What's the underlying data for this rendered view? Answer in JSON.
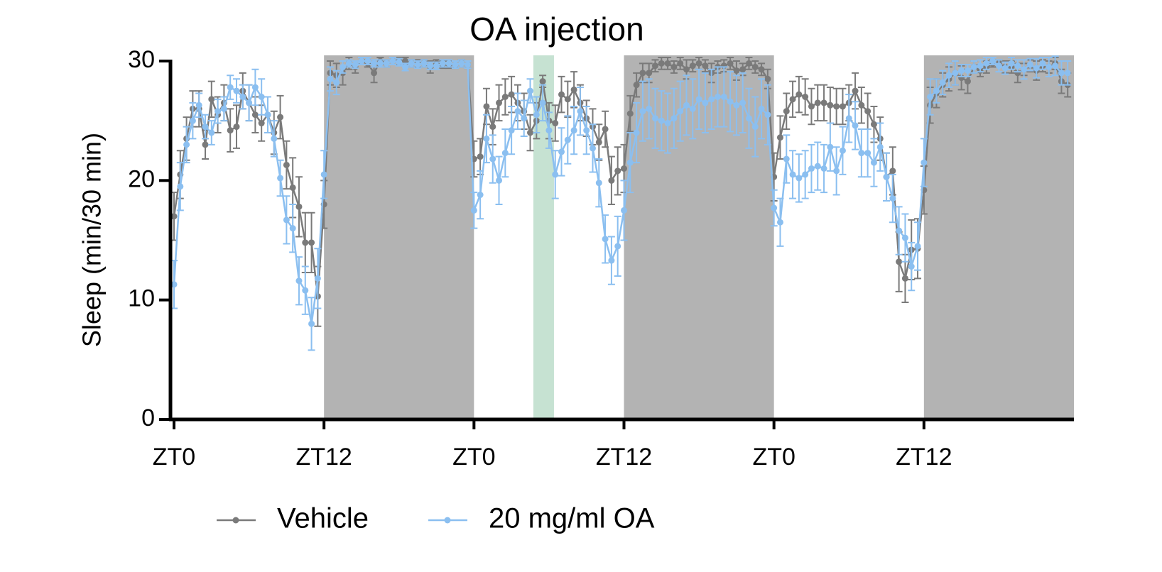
{
  "chart_data": {
    "type": "line",
    "title": "OA injection",
    "y_label": "Sleep (min/30 min)",
    "x": [
      0,
      0.5,
      1,
      1.5,
      2,
      2.5,
      3,
      3.5,
      4,
      4.5,
      5,
      5.5,
      6,
      6.5,
      7,
      7.5,
      8,
      8.5,
      9,
      9.5,
      10,
      10.5,
      11,
      11.5,
      12,
      12.5,
      13,
      13.5,
      14,
      14.5,
      15,
      15.5,
      16,
      16.5,
      17,
      17.5,
      18,
      18.5,
      19,
      19.5,
      20,
      20.5,
      21,
      21.5,
      22,
      22.5,
      23,
      23.5,
      24,
      24.5,
      25,
      25.5,
      26,
      26.5,
      27,
      27.5,
      28,
      28.5,
      29,
      29.5,
      30,
      30.5,
      31,
      31.5,
      32,
      32.5,
      33,
      33.5,
      34,
      34.5,
      35,
      35.5,
      36,
      36.5,
      37,
      37.5,
      38,
      38.5,
      39,
      39.5,
      40,
      40.5,
      41,
      41.5,
      42,
      42.5,
      43,
      43.5,
      44,
      44.5,
      45,
      45.5,
      46,
      46.5,
      47,
      47.5,
      48,
      48.5,
      49,
      49.5,
      50,
      50.5,
      51,
      51.5,
      52,
      52.5,
      53,
      53.5,
      54,
      54.5,
      55,
      55.5,
      56,
      56.5,
      57,
      57.5,
      58,
      58.5,
      59,
      59.5,
      60,
      60.5,
      61,
      61.5,
      62,
      62.5,
      63,
      63.5,
      64,
      64.5,
      65,
      65.5,
      66,
      66.5,
      67,
      67.5,
      68,
      68.5,
      69,
      69.5,
      70,
      70.5,
      71,
      71.5
    ],
    "series": [
      {
        "name": "Vehicle",
        "color": "#7a7a7a",
        "values": [
          17,
          20.5,
          23.5,
          26,
          26,
          23,
          26.8,
          25.5,
          26.5,
          24.2,
          24.5,
          27.5,
          26.5,
          25.5,
          24.8,
          25.5,
          24,
          25.3,
          21.3,
          19.4,
          17.8,
          14.8,
          14.8,
          10.3,
          18,
          29,
          28.8,
          29,
          29.8,
          29.5,
          30,
          29.8,
          29,
          30,
          29.8,
          30,
          30,
          30,
          29.8,
          29.8,
          29.8,
          29.5,
          29.8,
          29.7,
          29.7,
          29.7,
          29.8,
          29.7,
          21.8,
          22,
          26.2,
          24.5,
          26.5,
          27,
          27.2,
          26.5,
          25.8,
          24,
          25,
          28.3,
          25,
          24.8,
          27.2,
          26.8,
          27.6,
          26.5,
          25.2,
          24.5,
          23.2,
          24.3,
          20,
          20.8,
          21,
          25.6,
          28,
          29,
          29,
          29.6,
          29.8,
          29.8,
          29.5,
          29.8,
          29.3,
          29.6,
          29.8,
          29.6,
          29,
          29.5,
          29.6,
          29.8,
          29.2,
          29.3,
          29.8,
          29.5,
          29.3,
          28.5,
          20.3,
          23.6,
          25.8,
          26.8,
          27.2,
          27,
          26.2,
          26.5,
          26.5,
          26.3,
          26.2,
          26.2,
          26.5,
          27.5,
          26.3,
          25.8,
          24.7,
          23.5,
          20.3,
          20.8,
          13.2,
          11.8,
          14.2,
          14.3,
          19.2,
          26.3,
          27.3,
          28,
          28.5,
          29,
          28.6,
          28.3,
          29.5,
          29.2,
          29.5,
          29.8,
          29.8,
          29.5,
          29.5,
          29,
          29.3,
          29.6,
          29.2,
          29.6,
          29.5,
          29.8,
          28.3,
          28
        ],
        "errors": [
          2,
          2,
          1.8,
          1.5,
          1.5,
          1.2,
          1.5,
          1.5,
          1.5,
          1.8,
          1.8,
          1.5,
          1.5,
          1.5,
          1.5,
          1.5,
          1.8,
          1.8,
          2,
          2.5,
          2.5,
          2.5,
          2.5,
          2.5,
          2,
          1,
          1,
          1,
          0.5,
          0.5,
          0.3,
          0.3,
          0.8,
          0.3,
          0.3,
          0.3,
          0.3,
          0.3,
          0.3,
          0.3,
          0.3,
          0.5,
          0.3,
          0.3,
          0.3,
          0.3,
          0.3,
          0.3,
          1.5,
          1.5,
          1.5,
          1.5,
          1.5,
          1.5,
          1.5,
          1.5,
          1.5,
          1.5,
          1.5,
          0.5,
          1.5,
          1.5,
          1.5,
          1.5,
          1.5,
          1.5,
          1.5,
          1.5,
          1.5,
          1.5,
          2,
          2,
          2,
          1.5,
          1,
          0.8,
          0.8,
          0.5,
          0.5,
          0.5,
          0.5,
          0.5,
          0.8,
          0.5,
          0.5,
          0.5,
          0.8,
          0.5,
          0.5,
          0.5,
          0.8,
          0.5,
          0.5,
          0.5,
          0.5,
          0.8,
          2,
          1.8,
          1.5,
          1.5,
          1.5,
          1.5,
          1.5,
          1.5,
          1.5,
          1.5,
          1.5,
          1.5,
          1.5,
          1.5,
          1.5,
          1.5,
          1.5,
          1.8,
          2,
          2,
          2.5,
          2,
          2.5,
          2.5,
          2,
          1.5,
          1.2,
          1,
          1,
          1,
          1,
          1,
          0.5,
          0.5,
          0.5,
          0.3,
          0.3,
          0.5,
          0.5,
          0.8,
          0.5,
          0.5,
          0.8,
          0.5,
          0.5,
          0.5,
          1,
          1
        ]
      },
      {
        "name": "20 mg/ml OA",
        "color": "#8bbff0",
        "values": [
          11.3,
          19.5,
          23,
          25,
          26.3,
          24.5,
          24,
          25.8,
          26,
          27.8,
          27.5,
          27,
          26.5,
          27.8,
          27,
          25.5,
          23.5,
          20.2,
          16.7,
          16,
          11.6,
          10.8,
          8,
          11.8,
          20.5,
          28.5,
          28.2,
          29.5,
          29.8,
          29.7,
          30,
          30,
          29.8,
          29.8,
          29.8,
          30,
          29.9,
          29.5,
          29.8,
          29.7,
          29.8,
          29.6,
          29.6,
          29.8,
          29.8,
          29.7,
          29.8,
          29.7,
          17.5,
          18.8,
          23.5,
          21.8,
          20,
          22.3,
          24.2,
          25.8,
          25.2,
          27.5,
          25.5,
          26.5,
          24.2,
          20.5,
          22.4,
          23.4,
          24.2,
          25.8,
          24.2,
          22.7,
          19.8,
          15.1,
          13.3,
          14.5,
          17.5,
          21.5,
          24,
          25.8,
          26,
          25.2,
          25,
          24.8,
          25.2,
          25.8,
          26.3,
          26,
          26.8,
          26.5,
          26.8,
          27,
          27,
          26.6,
          26.3,
          26.5,
          25.2,
          24.5,
          26,
          25.5,
          17.7,
          16.5,
          21.8,
          20.5,
          20.2,
          20.5,
          21,
          21.2,
          21,
          22.8,
          20.8,
          22.5,
          25.2,
          24.6,
          22.3,
          22.3,
          21.5,
          22.8,
          20.3,
          18.5,
          15.8,
          15.2,
          12.8,
          14.5,
          21.5,
          27,
          27.5,
          28.2,
          28.8,
          29,
          29.2,
          29.2,
          29.5,
          29.6,
          29.8,
          30,
          29.6,
          29.4,
          29.8,
          29.6,
          29.3,
          29.7,
          29.4,
          29.8,
          29.5,
          29.6,
          29,
          29
        ],
        "errors": [
          2,
          2,
          1.5,
          1.5,
          1,
          1,
          1,
          1,
          1,
          1,
          1,
          1,
          1.5,
          1.5,
          1.5,
          1.5,
          1.5,
          1.5,
          2,
          2,
          2,
          2,
          2.2,
          2.5,
          2,
          1,
          1,
          0.5,
          0.3,
          0.3,
          0.3,
          0.3,
          0.3,
          0.3,
          0.3,
          0.3,
          0.3,
          0.3,
          0.3,
          0.3,
          0.3,
          0.3,
          0.3,
          0.3,
          0.3,
          0.3,
          0.3,
          0.3,
          1.5,
          2,
          2,
          2,
          2,
          2,
          2,
          1.5,
          1.5,
          1,
          1.5,
          1.5,
          1.5,
          2,
          2,
          2,
          2,
          2,
          2,
          2,
          2,
          2,
          2,
          2.5,
          2.5,
          2.5,
          2.5,
          2.5,
          2.5,
          2.5,
          2.5,
          2.5,
          2.5,
          2.5,
          2.5,
          2.5,
          2.5,
          2.5,
          2.5,
          2.5,
          2.5,
          2.5,
          2.5,
          2.5,
          2.5,
          2.5,
          2.5,
          2.5,
          1.5,
          2,
          2,
          2,
          2,
          2,
          2,
          2,
          2,
          2,
          2,
          2,
          2,
          2,
          2,
          2,
          2,
          2,
          2,
          2,
          2,
          2,
          2,
          2,
          2,
          1.5,
          1,
          1,
          1,
          1,
          0.5,
          0.5,
          0.5,
          0.5,
          0.5,
          0.3,
          0.5,
          0.5,
          0.5,
          0.5,
          0.8,
          0.5,
          0.8,
          0.5,
          0.8,
          0.8,
          1,
          1
        ]
      }
    ],
    "shaded_regions": [
      {
        "range": [
          12,
          24
        ],
        "color": "#b3b3b3"
      },
      {
        "range": [
          28.75,
          30.4
        ],
        "color": "#c6e2d2"
      },
      {
        "range": [
          36,
          48
        ],
        "color": "#b3b3b3"
      },
      {
        "range": [
          60,
          72
        ],
        "color": "#b3b3b3"
      }
    ],
    "xlim": [
      0,
      72
    ],
    "xticks": [
      {
        "value": 0,
        "label": "ZT0"
      },
      {
        "value": 12,
        "label": "ZT12"
      },
      {
        "value": 24,
        "label": "ZT0"
      },
      {
        "value": 36,
        "label": "ZT12"
      },
      {
        "value": 48,
        "label": "ZT0"
      },
      {
        "value": 60,
        "label": "ZT12"
      }
    ],
    "ylim": [
      0,
      30
    ],
    "yticks": [
      0,
      10,
      20,
      30
    ],
    "legend": "bottom"
  }
}
